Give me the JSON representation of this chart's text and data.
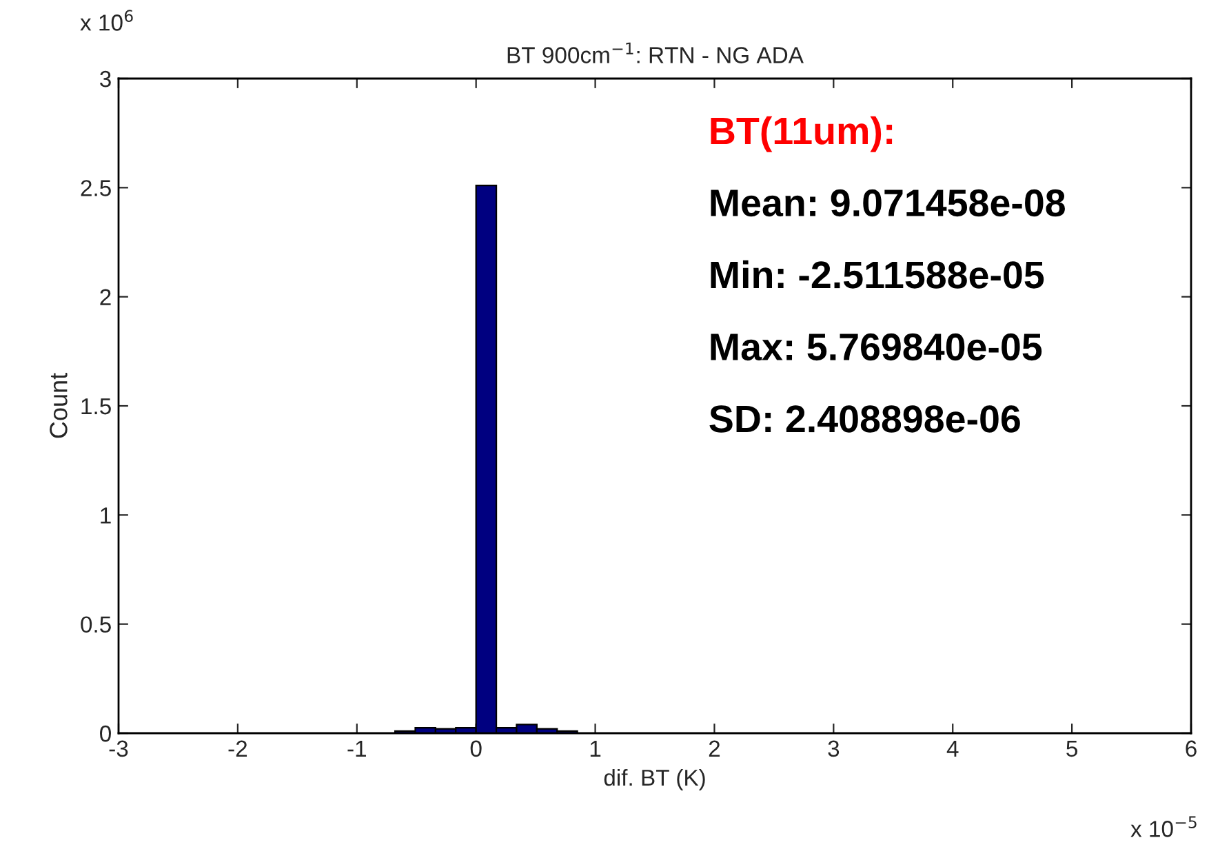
{
  "chart_data": {
    "type": "histogram",
    "title": "BT 900cm$^{−1}$: RTN - NG ADA",
    "xlabel": "dif. BT (K)",
    "ylabel": "Count",
    "bins": [
      -0.68,
      -0.51,
      -0.34,
      -0.17,
      0,
      0.17,
      0.34,
      0.51,
      0.68,
      0.85
    ],
    "values": [
      0.01,
      0.025,
      0.02,
      0.025,
      2.51,
      0.025,
      0.04,
      0.02,
      0.01
    ],
    "color": "#000080",
    "xlim": [
      -3,
      6
    ],
    "xticks": [
      -3,
      -2,
      -1,
      0,
      1,
      2,
      3,
      4,
      5,
      6
    ],
    "ylim": [
      0,
      3
    ],
    "yticks": [
      0,
      0.5,
      1,
      1.5,
      2,
      2.5,
      3
    ],
    "grid": false,
    "annotations": [
      "x 10$^{6}$",
      "x 10$^{−5}$",
      "BT(11um):",
      "Mean: 9.071458e-08",
      "Min: -2.511588e-05",
      "Max: 5.769840e-05",
      "SD: 2.408898e-06"
    ]
  }
}
